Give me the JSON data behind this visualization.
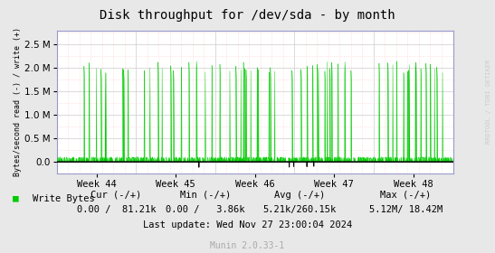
{
  "title": "Disk throughput for /dev/sda - by month",
  "ylabel": "Bytes/second read (-) / write (+)",
  "xlabel_ticks": [
    "Week 44",
    "Week 45",
    "Week 46",
    "Week 47",
    "Week 48"
  ],
  "ytick_values": [
    0.0,
    500000,
    1000000,
    1500000,
    2000000,
    2500000
  ],
  "ytick_labels": [
    "0.0",
    "0.5 M",
    "1.0 M",
    "1.5 M",
    "2.0 M",
    "2.5 M"
  ],
  "ylim": [
    -250000,
    2800000
  ],
  "xlim": [
    0,
    35
  ],
  "bg_color": "#e8e8e8",
  "plot_bg_color": "#ffffff",
  "line_color_write": "#00cc00",
  "line_color_read": "#000000",
  "watermark": "RRDTOOL / TOBI OETIKER",
  "munin_text": "Munin 2.0.33-1",
  "legend_label": "Write Bytes",
  "legend_color": "#00cc00",
  "cur_label": "Cur (-/+)",
  "min_label": "Min (-/+)",
  "avg_label": "Avg (-/+)",
  "max_label": "Max (-/+)",
  "cur_val": "0.00 /  81.21k",
  "min_val": "0.00 /   3.86k",
  "avg_val": "5.21k/260.15k",
  "max_val": "5.12M/ 18.42M",
  "last_update": "Last update: Wed Nov 27 23:00:04 2024",
  "spike_value": 2150000,
  "base_write_value": 5000,
  "negative_spike_value": -130000,
  "grid_major_color": "#cccccc",
  "grid_minor_color": "#ffcccc",
  "axis_arrow_color": "#9999cc"
}
